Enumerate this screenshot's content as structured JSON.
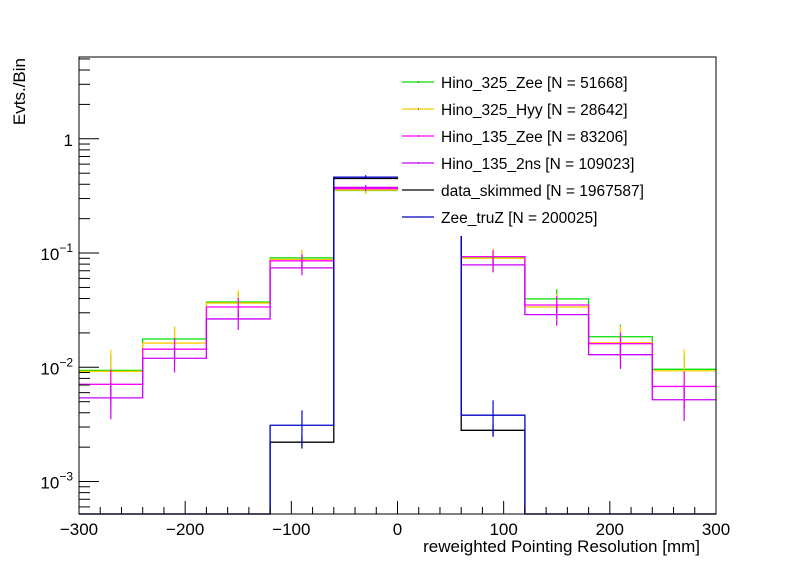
{
  "chart_data": {
    "type": "histogram-step",
    "title": "",
    "xlabel": "reweighted Pointing Resolution [mm]",
    "ylabel": "Evts./Bin",
    "xlim": [
      -300,
      300
    ],
    "ylim": [
      0.00052,
      5.2
    ],
    "yscale": "log",
    "grid": false,
    "legend_position": "top-right",
    "bin_edges": [
      -300,
      -240,
      -180,
      -120,
      -60,
      0,
      60,
      120,
      180,
      240,
      300
    ],
    "x_ticks": [
      {
        "value": -300,
        "label": "−300"
      },
      {
        "value": -200,
        "label": "−200"
      },
      {
        "value": -100,
        "label": "−100"
      },
      {
        "value": 0,
        "label": "0"
      },
      {
        "value": 100,
        "label": "100"
      },
      {
        "value": 200,
        "label": "200"
      },
      {
        "value": 300,
        "label": "300"
      }
    ],
    "y_ticks": [
      {
        "value": 1,
        "base": "1",
        "exp": ""
      },
      {
        "value": 0.1,
        "base": "10",
        "exp": "−1"
      },
      {
        "value": 0.01,
        "base": "10",
        "exp": "−2"
      },
      {
        "value": 0.001,
        "base": "10",
        "exp": "−3"
      }
    ],
    "series": [
      {
        "name": "Hino_325_Zee [N = 51668]",
        "color": "#00e000",
        "values": [
          0.0094,
          0.0177,
          0.0373,
          0.0907,
          0.353,
          0.353,
          0.091,
          0.0397,
          0.0185,
          0.0096
        ],
        "err_rel": [
          0.38,
          0.28,
          0.22,
          0.16,
          0.06,
          0.06,
          0.16,
          0.22,
          0.28,
          0.38
        ]
      },
      {
        "name": "Hino_325_Hyy [N = 28642]",
        "color": "#ffcc00",
        "values": [
          0.0092,
          0.0163,
          0.0365,
          0.088,
          0.356,
          0.356,
          0.09,
          0.0337,
          0.0164,
          0.0093
        ],
        "err_rel": [
          0.55,
          0.4,
          0.3,
          0.22,
          0.08,
          0.08,
          0.22,
          0.3,
          0.4,
          0.55
        ]
      },
      {
        "name": "Hino_135_Zee [N = 83206]",
        "color": "#ff00ff",
        "values": [
          0.0071,
          0.0144,
          0.0337,
          0.0855,
          0.366,
          0.366,
          0.093,
          0.0351,
          0.0161,
          0.0068
        ],
        "err_rel": [
          0.35,
          0.25,
          0.2,
          0.14,
          0.05,
          0.05,
          0.14,
          0.2,
          0.25,
          0.35
        ]
      },
      {
        "name": "Hino_135_2ns [N = 109023]",
        "color": "#cc00ff",
        "values": [
          0.0054,
          0.012,
          0.0265,
          0.0742,
          0.376,
          0.376,
          0.0788,
          0.0289,
          0.0129,
          0.0052
        ],
        "err_rel": [
          0.35,
          0.25,
          0.2,
          0.14,
          0.05,
          0.05,
          0.14,
          0.2,
          0.25,
          0.35
        ]
      },
      {
        "name": "data_skimmed [N = 1967587]",
        "color": "#000000",
        "values": [
          0,
          0,
          0,
          0.00221,
          0.45,
          0.45,
          0.00281,
          0,
          0,
          0
        ],
        "err_rel": [
          0,
          0,
          0,
          0.12,
          0.01,
          0.01,
          0.12,
          0,
          0,
          0
        ]
      },
      {
        "name": "Zee_truZ [N = 200025]",
        "color": "#0000cc",
        "values": [
          0,
          0,
          0,
          0.00311,
          0.462,
          0.462,
          0.00381,
          0,
          0,
          0
        ],
        "err_rel": [
          0,
          0,
          0,
          0.35,
          0.04,
          0.04,
          0.35,
          0,
          0,
          0
        ]
      }
    ]
  }
}
